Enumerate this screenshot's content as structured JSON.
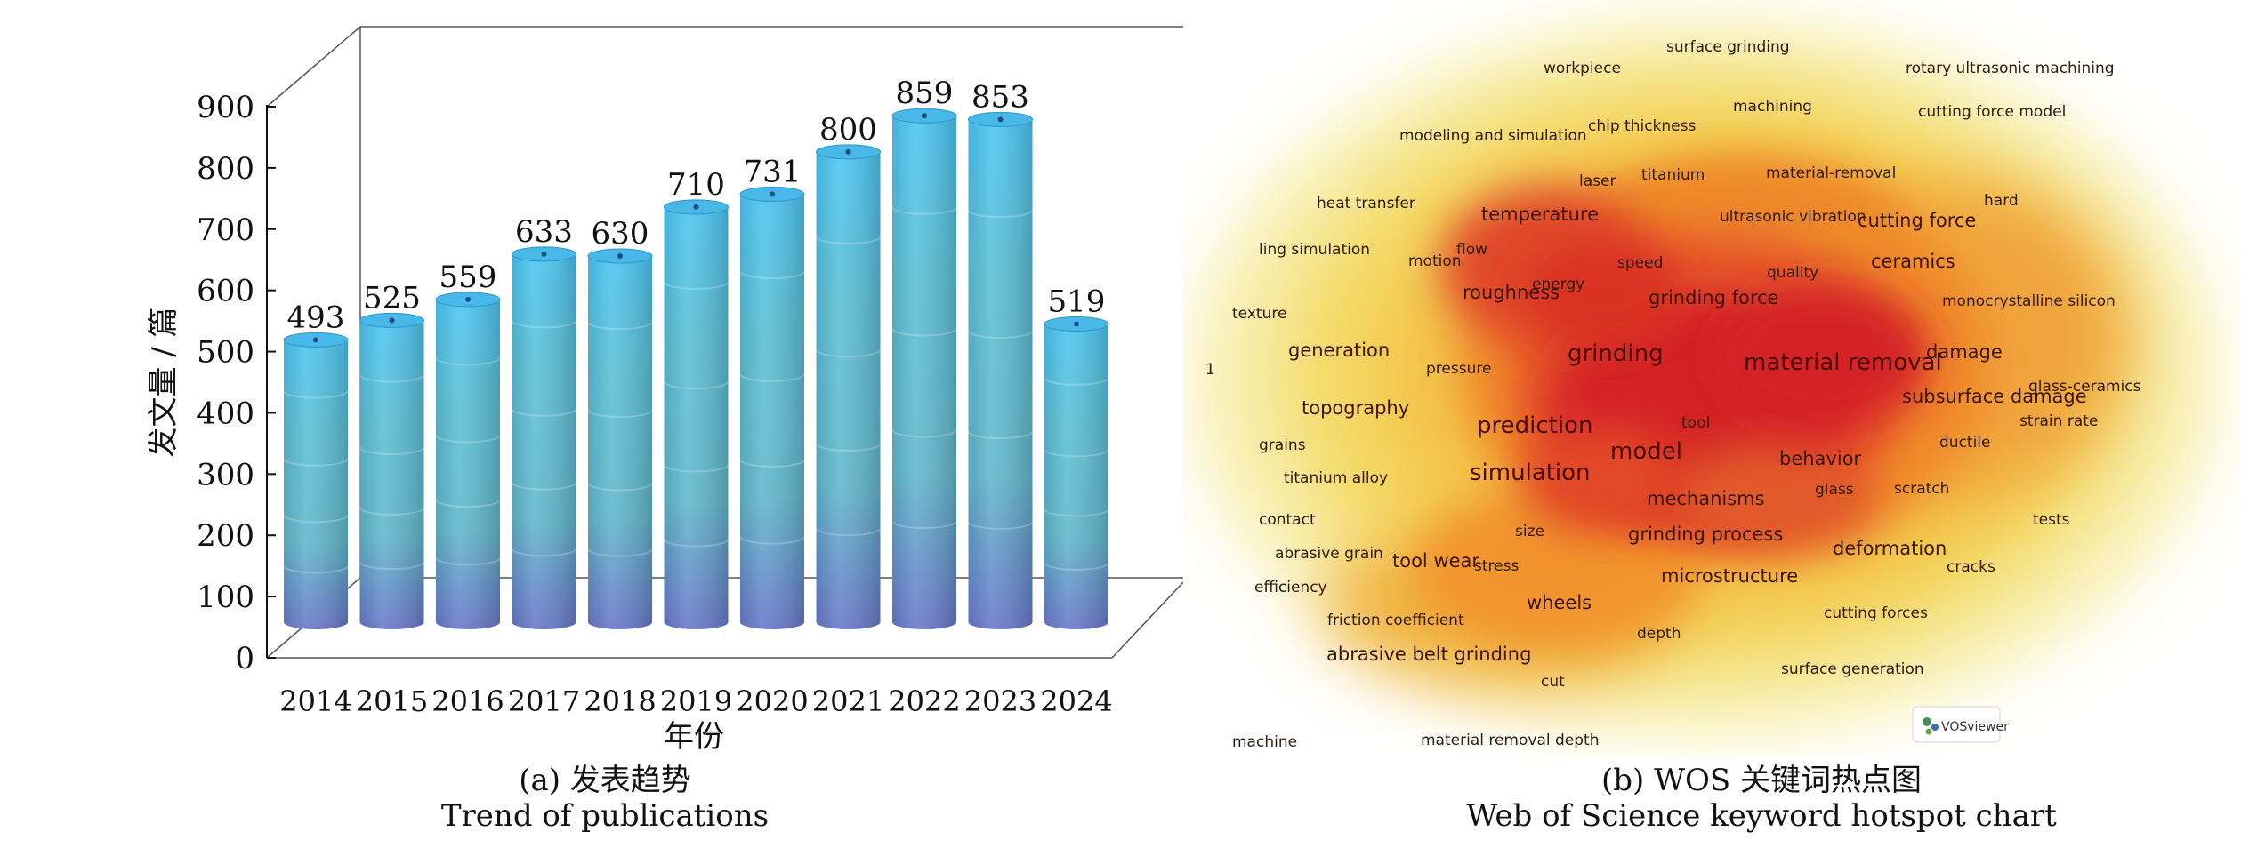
{
  "panel_a": {
    "caption_cn": "(a) 发表趋势",
    "caption_en": "Trend of publications"
  },
  "panel_b": {
    "caption_cn": "(b) WOS 关键词热点图",
    "caption_en": "Web of Science keyword hotspot chart",
    "watermark": "VOSviewer"
  },
  "chart_data": [
    {
      "type": "bar",
      "title": "",
      "xlabel": "年份",
      "ylabel": "发文量 / 篇",
      "ylim": [
        0,
        900
      ],
      "yticks": [
        0,
        100,
        200,
        300,
        400,
        500,
        600,
        700,
        800,
        900
      ],
      "categories": [
        "2014",
        "2015",
        "2016",
        "2017",
        "2018",
        "2019",
        "2020",
        "2021",
        "2022",
        "2023",
        "2024"
      ],
      "values": [
        493,
        525,
        559,
        633,
        630,
        710,
        731,
        800,
        859,
        853,
        519
      ],
      "data_labels": [
        "493",
        "525",
        "559",
        "633",
        "630",
        "710",
        "731",
        "800",
        "859",
        "853",
        "519"
      ],
      "grid": false,
      "style": "3d-cylinder",
      "colors": {
        "top": "#4fc3f0",
        "mid": "#5fbccc",
        "bottom": "#6a7fcc"
      }
    },
    {
      "type": "heatmap",
      "title": "",
      "style": "keyword-density",
      "colors": {
        "hot": "#d42226",
        "warm": "#f08a2a",
        "mild": "#f4cf52",
        "cool": "#f7eeab"
      },
      "keywords": [
        {
          "text": "surface grinding",
          "size": "small"
        },
        {
          "text": "workpiece",
          "size": "small"
        },
        {
          "text": "rotary ultrasonic machining",
          "size": "small"
        },
        {
          "text": "machining",
          "size": "small"
        },
        {
          "text": "cutting force model",
          "size": "small"
        },
        {
          "text": "modeling and simulation",
          "size": "small"
        },
        {
          "text": "chip thickness",
          "size": "small"
        },
        {
          "text": "titanium",
          "size": "small"
        },
        {
          "text": "material-removal",
          "size": "small"
        },
        {
          "text": "laser",
          "size": "small"
        },
        {
          "text": "heat transfer",
          "size": "small"
        },
        {
          "text": "temperature",
          "size": "medium"
        },
        {
          "text": "ultrasonic vibration",
          "size": "small"
        },
        {
          "text": "cutting force",
          "size": "medium"
        },
        {
          "text": "hard",
          "size": "small"
        },
        {
          "text": "ling simulation",
          "size": "small"
        },
        {
          "text": "flow",
          "size": "small"
        },
        {
          "text": "motion",
          "size": "small"
        },
        {
          "text": "speed",
          "size": "small"
        },
        {
          "text": "quality",
          "size": "small"
        },
        {
          "text": "ceramics",
          "size": "medium"
        },
        {
          "text": "energy",
          "size": "small"
        },
        {
          "text": "roughness",
          "size": "medium"
        },
        {
          "text": "grinding force",
          "size": "medium"
        },
        {
          "text": "monocrystalline silicon",
          "size": "small"
        },
        {
          "text": "texture",
          "size": "small"
        },
        {
          "text": "generation",
          "size": "medium"
        },
        {
          "text": "grinding",
          "size": "large"
        },
        {
          "text": "material removal",
          "size": "large"
        },
        {
          "text": "damage",
          "size": "medium"
        },
        {
          "text": "1",
          "size": "small"
        },
        {
          "text": "pressure",
          "size": "small"
        },
        {
          "text": "glass-ceramics",
          "size": "small"
        },
        {
          "text": "subsurface damage",
          "size": "medium"
        },
        {
          "text": "topography",
          "size": "medium"
        },
        {
          "text": "tool",
          "size": "small"
        },
        {
          "text": "strain rate",
          "size": "small"
        },
        {
          "text": "prediction",
          "size": "large"
        },
        {
          "text": "grains",
          "size": "small"
        },
        {
          "text": "model",
          "size": "large"
        },
        {
          "text": "behavior",
          "size": "medium"
        },
        {
          "text": "ductile",
          "size": "small"
        },
        {
          "text": "titanium alloy",
          "size": "small"
        },
        {
          "text": "simulation",
          "size": "large"
        },
        {
          "text": "glass",
          "size": "small"
        },
        {
          "text": "scratch",
          "size": "small"
        },
        {
          "text": "mechanisms",
          "size": "medium"
        },
        {
          "text": "contact",
          "size": "small"
        },
        {
          "text": "tests",
          "size": "small"
        },
        {
          "text": "size",
          "size": "small"
        },
        {
          "text": "grinding process",
          "size": "medium"
        },
        {
          "text": "abrasive grain",
          "size": "small"
        },
        {
          "text": "deformation",
          "size": "medium"
        },
        {
          "text": "tool wear",
          "size": "medium"
        },
        {
          "text": "stress",
          "size": "small"
        },
        {
          "text": "efficiency",
          "size": "small"
        },
        {
          "text": "microstructure",
          "size": "medium"
        },
        {
          "text": "cracks",
          "size": "small"
        },
        {
          "text": "wheels",
          "size": "medium"
        },
        {
          "text": "friction coefficient",
          "size": "small"
        },
        {
          "text": "cutting forces",
          "size": "small"
        },
        {
          "text": "depth",
          "size": "small"
        },
        {
          "text": "abrasive belt grinding",
          "size": "medium"
        },
        {
          "text": "surface generation",
          "size": "small"
        },
        {
          "text": "cut",
          "size": "small"
        },
        {
          "text": "machine",
          "size": "small"
        },
        {
          "text": "material removal depth",
          "size": "small"
        }
      ]
    }
  ]
}
